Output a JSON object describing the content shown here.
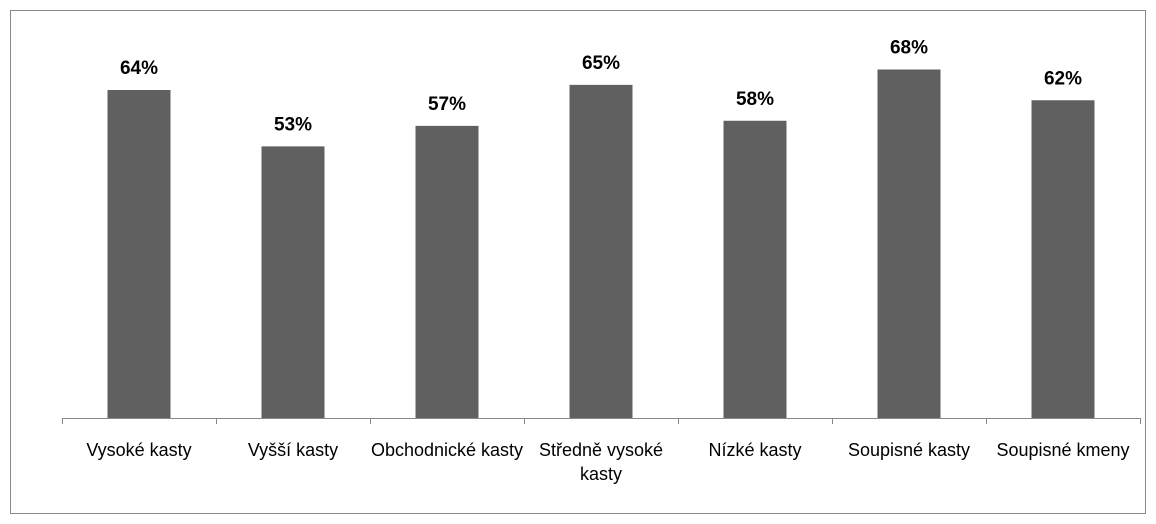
{
  "chart_data": {
    "type": "bar",
    "categories": [
      "Vysoké kasty",
      "Vyšší kasty",
      "Obchodnické kasty",
      "Středně vysoké kasty",
      "Nízké kasty",
      "Soupisné kasty",
      "Soupisné kmeny"
    ],
    "values": [
      64,
      53,
      57,
      65,
      58,
      68,
      62
    ],
    "value_labels": [
      "64%",
      "53%",
      "57%",
      "65%",
      "58%",
      "68%",
      "62%"
    ],
    "color": "#606060"
  }
}
